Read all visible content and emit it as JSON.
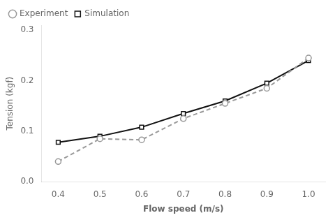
{
  "chart_data": {
    "type": "line",
    "xlabel": "Flow speed (m/s)",
    "ylabel": "Tension (kgf)",
    "x": [
      0.4,
      0.5,
      0.6,
      0.7,
      0.8,
      0.9,
      1.0
    ],
    "series": [
      {
        "name": "Experiment",
        "color": "#999999",
        "marker": "circle",
        "line_style": "dashed",
        "values": [
          0.04,
          0.085,
          0.083,
          0.125,
          0.155,
          0.185,
          0.245
        ]
      },
      {
        "name": "Simulation",
        "color": "#111111",
        "marker": "square",
        "line_style": "solid",
        "values": [
          0.078,
          0.09,
          0.108,
          0.135,
          0.16,
          0.195,
          0.24
        ]
      }
    ],
    "xlim": [
      0.36,
      1.04
    ],
    "ylim": [
      0.0,
      0.31
    ],
    "xticks": [
      0.4,
      0.5,
      0.6,
      0.7,
      0.8,
      0.9,
      {
        "value": 1.0,
        "label": "1.0"
      }
    ],
    "yticks": [
      {
        "value": 0.0,
        "label": "0.0"
      },
      0.1,
      0.2,
      0.3
    ],
    "grid": false,
    "legend": "upper left"
  }
}
